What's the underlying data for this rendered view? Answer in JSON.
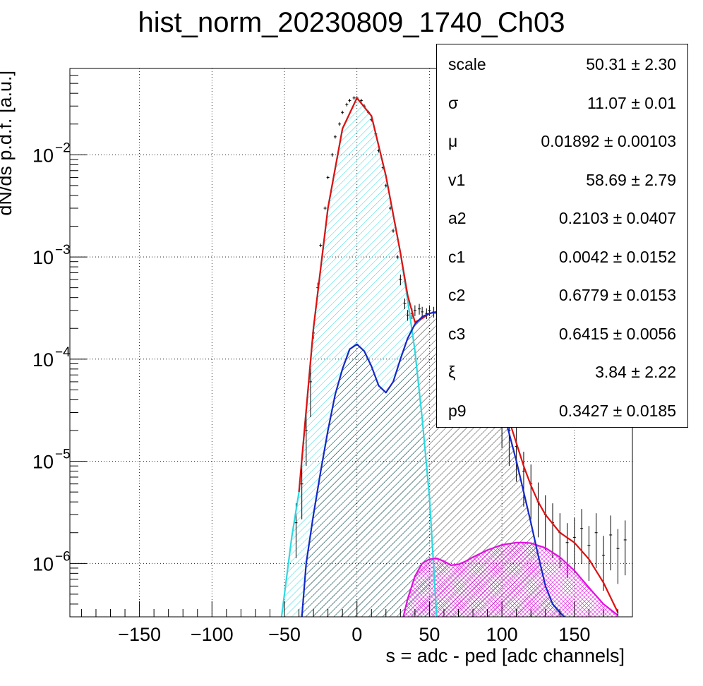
{
  "chart_data": {
    "type": "line",
    "title": "hist_norm_20230809_1740_Ch03",
    "xlabel": "s = adc - ped [adc channels]",
    "ylabel": "dN/ds p.d.f. [a.u.]",
    "xlim": [
      -198,
      190
    ],
    "ylim": [
      3e-07,
      0.07
    ],
    "yscale": "log",
    "grid": true,
    "xticks": [
      -150,
      -100,
      -50,
      0,
      50,
      100,
      150
    ],
    "xtick_labels": [
      "−150",
      "−100",
      "−50",
      "0",
      "50",
      "100",
      "150"
    ],
    "yticks": [
      1e-06,
      1e-05,
      0.0001,
      0.001,
      0.01
    ],
    "ytick_mantissa": "10",
    "ytick_exponents": [
      "−6",
      "−5",
      "−4",
      "−3",
      "−2"
    ],
    "series": [
      {
        "role": "total-fit",
        "color": "#e01010",
        "x": [
          -40,
          -30,
          -20,
          -10,
          0,
          10,
          20,
          30,
          35,
          40,
          45,
          50,
          55,
          60,
          70,
          80,
          90,
          100,
          105,
          110,
          115,
          120,
          125,
          130,
          140,
          150,
          160,
          170,
          180
        ],
        "y": [
          5e-06,
          0.0002,
          0.003,
          0.018,
          0.036,
          0.024,
          0.0062,
          0.0011,
          0.00042,
          0.00023,
          0.00025,
          0.00028,
          0.00029,
          0.00028,
          0.00022,
          0.00015,
          8.5e-05,
          4e-05,
          2.5e-05,
          1.5e-05,
          9e-06,
          5.8e-06,
          4e-06,
          3e-06,
          2e-06,
          1.6e-06,
          1.1e-06,
          6.5e-07,
          3.3e-07
        ]
      },
      {
        "role": "pedestal-component",
        "color": "#30d8e0",
        "fill": "hatched",
        "x": [
          -52,
          -45,
          -40,
          -30,
          -20,
          -10,
          0,
          10,
          20,
          30,
          35,
          40,
          45,
          50,
          55
        ],
        "y": [
          3e-07,
          1.8e-06,
          5e-06,
          0.0002,
          0.003,
          0.018,
          0.036,
          0.024,
          0.0062,
          0.0011,
          0.00038,
          0.00012,
          2.6e-05,
          4.5e-06,
          3e-07
        ]
      },
      {
        "role": "single-photoelectron-component",
        "color": "#1428c8",
        "fill": "hatched",
        "x": [
          -38,
          -35,
          -30,
          -25,
          -20,
          -15,
          -10,
          -5,
          0,
          5,
          10,
          15,
          20,
          25,
          30,
          35,
          40,
          45,
          50,
          55,
          60,
          70,
          80,
          90,
          100,
          110,
          120,
          125,
          130,
          135,
          140,
          143
        ],
        "y": [
          3e-07,
          1e-06,
          3e-06,
          8e-06,
          2e-05,
          4.5e-05,
          8e-05,
          0.000125,
          0.00014,
          0.00012,
          8.5e-05,
          5.5e-05,
          4.7e-05,
          6e-05,
          0.0001,
          0.00016,
          0.00022,
          0.00026,
          0.00028,
          0.00029,
          0.00028,
          0.00022,
          0.00015,
          8.5e-05,
          3.5e-05,
          1e-05,
          2.5e-06,
          1.2e-06,
          6e-07,
          4e-07,
          3.3e-07,
          3e-07
        ]
      },
      {
        "role": "double-photoelectron-component",
        "color": "#e010e0",
        "fill": "crosshatched",
        "x": [
          32,
          35,
          40,
          45,
          50,
          55,
          60,
          65,
          70,
          75,
          80,
          90,
          100,
          110,
          115,
          120,
          130,
          140,
          150,
          160,
          170,
          180
        ],
        "y": [
          3e-07,
          4.5e-07,
          7.5e-07,
          1e-06,
          1.1e-06,
          1.12e-06,
          1.05e-06,
          9.6e-07,
          9.8e-07,
          1.05e-06,
          1.15e-06,
          1.35e-06,
          1.52e-06,
          1.6e-06,
          1.6e-06,
          1.58e-06,
          1.42e-06,
          1.15e-06,
          8.5e-07,
          5.8e-07,
          4e-07,
          3.1e-07
        ]
      }
    ],
    "data_points": {
      "role": "histogram-with-error-bars",
      "color": "#000000",
      "x": [
        -42,
        -38,
        -35,
        -32,
        -30,
        -27,
        -25,
        -22,
        -20,
        -17,
        -15,
        -12,
        -10,
        -7,
        -5,
        -2,
        0,
        3,
        5,
        8,
        10,
        13,
        15,
        18,
        20,
        23,
        25,
        28,
        30,
        33,
        35,
        38,
        40,
        43,
        45,
        48,
        50,
        53,
        55,
        58,
        60,
        65,
        70,
        75,
        80,
        85,
        90,
        95,
        100,
        105,
        110,
        115,
        120,
        125,
        130,
        135,
        140,
        145,
        150,
        155,
        160,
        165,
        170,
        175,
        180,
        185
      ],
      "y": [
        2.5e-06,
        6e-06,
        2e-05,
        6e-05,
        0.00018,
        0.0005,
        0.0013,
        0.003,
        0.006,
        0.01,
        0.015,
        0.02,
        0.026,
        0.031,
        0.034,
        0.036,
        0.036,
        0.034,
        0.03,
        0.026,
        0.022,
        0.016,
        0.011,
        0.0075,
        0.005,
        0.003,
        0.0018,
        0.001,
        0.0006,
        0.00035,
        0.00027,
        0.00028,
        0.0003,
        0.00031,
        0.00029,
        0.00028,
        0.0003,
        0.00029,
        0.00028,
        0.00027,
        0.00026,
        0.00023,
        0.00021,
        0.00018,
        0.00015,
        0.00011,
        8e-05,
        5e-05,
        3e-05,
        2e-05,
        1.4e-05,
        8e-06,
        6e-06,
        4e-06,
        3e-06,
        2.5e-06,
        2e-06,
        1.6e-06,
        1.8e-06,
        2.2e-06,
        1.5e-06,
        2e-06,
        1.2e-06,
        1.9e-06,
        1.4e-06,
        1.7e-06
      ]
    },
    "stats": [
      {
        "name": "scale",
        "value": "50.31",
        "error": "2.30"
      },
      {
        "name": "σ",
        "value": "11.07",
        "error": "0.01"
      },
      {
        "name": "μ",
        "value": "0.01892",
        "error": "0.00103"
      },
      {
        "name": "v1",
        "value": "58.69",
        "error": "2.79"
      },
      {
        "name": "a2",
        "value": "0.2103",
        "error": "0.0407"
      },
      {
        "name": "c1",
        "value": "0.0042",
        "error": "0.0152"
      },
      {
        "name": "c2",
        "value": "0.6779",
        "error": "0.0153"
      },
      {
        "name": "c3",
        "value": "0.6415",
        "error": "0.0056"
      },
      {
        "name": "ξ",
        "value": "3.84",
        "error": "2.22"
      },
      {
        "name": "p9",
        "value": "0.3427",
        "error": "0.0185"
      }
    ],
    "stats_pm": "±"
  }
}
